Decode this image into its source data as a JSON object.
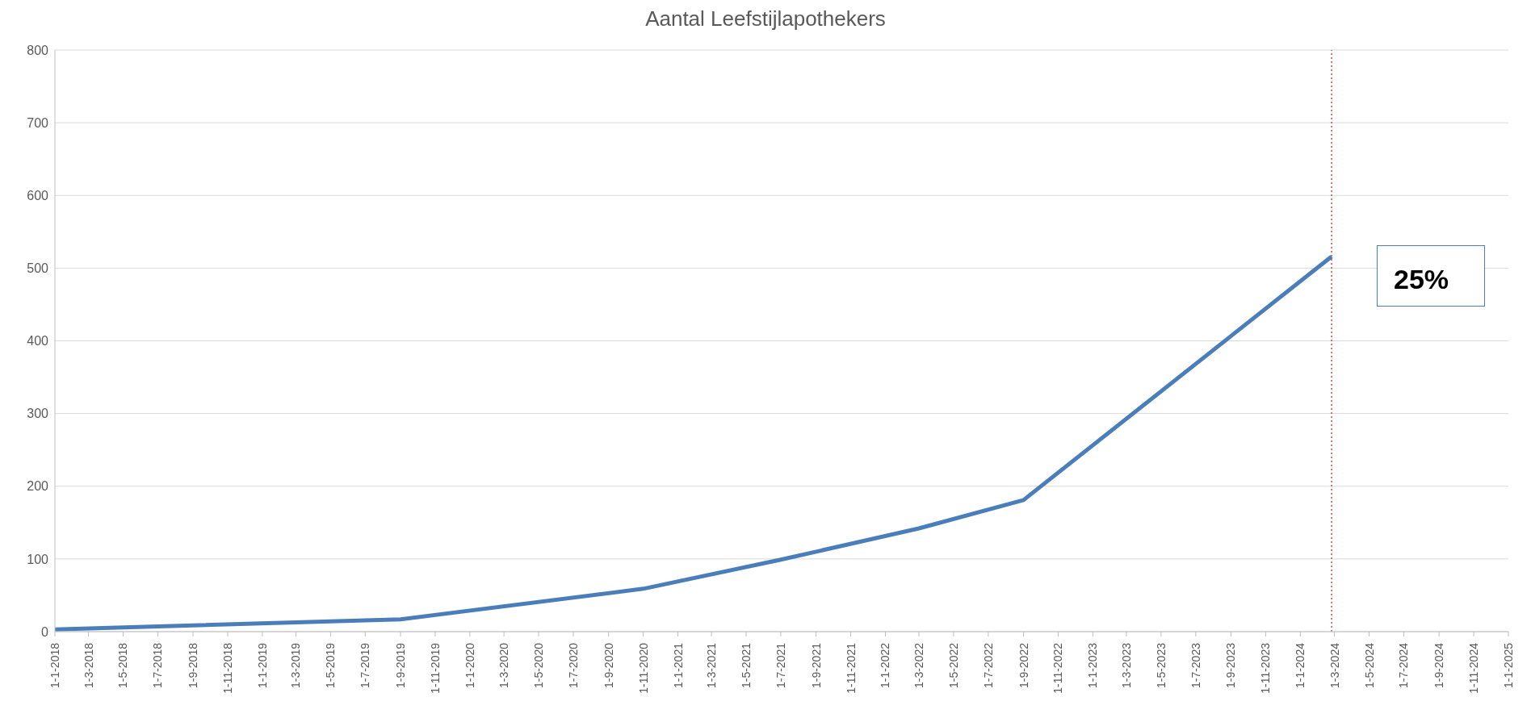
{
  "chart_data": {
    "type": "line",
    "title": "Aantal Leefstijlapothekers",
    "x": [
      "2018-01-01",
      "2019-09-01",
      "2020-11-01",
      "2021-07-01",
      "2022-03-01",
      "2022-09-01",
      "2024-02-25"
    ],
    "series": [
      {
        "color": "#4a7ebb",
        "values": [
          3,
          17,
          59,
          99,
          142,
          181,
          516
        ]
      }
    ],
    "xlim": [
      "2018-01-01",
      "2025-01-01"
    ],
    "xticks": [
      {
        "value": "2018-01-01",
        "label": "1-1-2018"
      },
      {
        "value": "2018-03-01",
        "label": "1-3-2018"
      },
      {
        "value": "2018-05-01",
        "label": "1-5-2018"
      },
      {
        "value": "2018-07-01",
        "label": "1-7-2018"
      },
      {
        "value": "2018-09-01",
        "label": "1-9-2018"
      },
      {
        "value": "2018-11-01",
        "label": "1-11-2018"
      },
      {
        "value": "2019-01-01",
        "label": "1-1-2019"
      },
      {
        "value": "2019-03-01",
        "label": "1-3-2019"
      },
      {
        "value": "2019-05-01",
        "label": "1-5-2019"
      },
      {
        "value": "2019-07-01",
        "label": "1-7-2019"
      },
      {
        "value": "2019-09-01",
        "label": "1-9-2019"
      },
      {
        "value": "2019-11-01",
        "label": "1-11-2019"
      },
      {
        "value": "2020-01-01",
        "label": "1-1-2020"
      },
      {
        "value": "2020-03-01",
        "label": "1-3-2020"
      },
      {
        "value": "2020-05-01",
        "label": "1-5-2020"
      },
      {
        "value": "2020-07-01",
        "label": "1-7-2020"
      },
      {
        "value": "2020-09-01",
        "label": "1-9-2020"
      },
      {
        "value": "2020-11-01",
        "label": "1-11-2020"
      },
      {
        "value": "2021-01-01",
        "label": "1-1-2021"
      },
      {
        "value": "2021-03-01",
        "label": "1-3-2021"
      },
      {
        "value": "2021-05-01",
        "label": "1-5-2021"
      },
      {
        "value": "2021-07-01",
        "label": "1-7-2021"
      },
      {
        "value": "2021-09-01",
        "label": "1-9-2021"
      },
      {
        "value": "2021-11-01",
        "label": "1-11-2021"
      },
      {
        "value": "2022-01-01",
        "label": "1-1-2022"
      },
      {
        "value": "2022-03-01",
        "label": "1-3-2022"
      },
      {
        "value": "2022-05-01",
        "label": "1-5-2022"
      },
      {
        "value": "2022-07-01",
        "label": "1-7-2022"
      },
      {
        "value": "2022-09-01",
        "label": "1-9-2022"
      },
      {
        "value": "2022-11-01",
        "label": "1-11-2022"
      },
      {
        "value": "2023-01-01",
        "label": "1-1-2023"
      },
      {
        "value": "2023-03-01",
        "label": "1-3-2023"
      },
      {
        "value": "2023-05-01",
        "label": "1-5-2023"
      },
      {
        "value": "2023-07-01",
        "label": "1-7-2023"
      },
      {
        "value": "2023-09-01",
        "label": "1-9-2023"
      },
      {
        "value": "2023-11-01",
        "label": "1-11-2023"
      },
      {
        "value": "2024-01-01",
        "label": "1-1-2024"
      },
      {
        "value": "2024-03-01",
        "label": "1-3-2024"
      },
      {
        "value": "2024-05-01",
        "label": "1-5-2024"
      },
      {
        "value": "2024-07-01",
        "label": "1-7-2024"
      },
      {
        "value": "2024-09-01",
        "label": "1-9-2024"
      },
      {
        "value": "2024-11-01",
        "label": "1-11-2024"
      },
      {
        "value": "2025-01-01",
        "label": "1-1-2025"
      }
    ],
    "ylim": [
      0,
      800
    ],
    "yticks": [
      0,
      100,
      200,
      300,
      400,
      500,
      600,
      700,
      800
    ],
    "grid": "y",
    "marker": "none",
    "line_style": "solid",
    "legend": false,
    "ref_lines": [
      {
        "axis": "x",
        "value": "2024-02-25",
        "color": "#c0504d",
        "line_style": "dotted"
      }
    ],
    "annotations": [
      "25%"
    ]
  }
}
